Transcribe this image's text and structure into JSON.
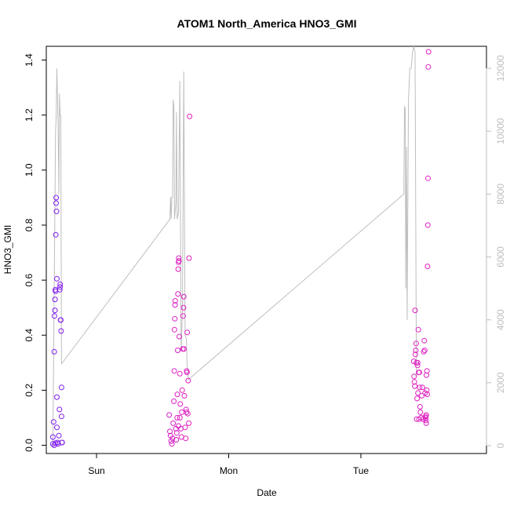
{
  "chart_data": {
    "type": "scatter",
    "title": "ATOM1 North_America HNO3_GMI",
    "xlabel": "Date",
    "ylabel": "HNO3_GMI",
    "x_ticks": [
      "Sun",
      "Mon",
      "Tue"
    ],
    "xlim_days": [
      -0.38,
      2.95
    ],
    "ylim": [
      -0.03,
      1.45
    ],
    "y_ticks": [
      0.0,
      0.2,
      0.4,
      0.6,
      0.8,
      1.0,
      1.2,
      1.4
    ],
    "y2_ticks": [
      0,
      2000,
      4000,
      6000,
      8000,
      10000,
      12000
    ],
    "y2lim": [
      -250,
      12700
    ],
    "colors": {
      "axis": "#000000",
      "secondary": "#bebebe",
      "point_early": "#7a1af0",
      "point_late": "#e020c0"
    },
    "grid": false,
    "legend": "none",
    "series": [
      {
        "marker": "circle-open",
        "points": [
          {
            "day": -0.33,
            "value": 0.005
          },
          {
            "day": -0.33,
            "value": 0.03
          },
          {
            "day": -0.325,
            "value": 0.085
          },
          {
            "day": -0.32,
            "value": 0.34
          },
          {
            "day": -0.318,
            "value": 0.47
          },
          {
            "day": -0.315,
            "value": 0.49
          },
          {
            "day": -0.314,
            "value": 0.53
          },
          {
            "day": -0.312,
            "value": 0.565
          },
          {
            "day": -0.31,
            "value": 0.56
          },
          {
            "day": -0.308,
            "value": 0.765
          },
          {
            "day": -0.306,
            "value": 0.88
          },
          {
            "day": -0.305,
            "value": 0.9
          },
          {
            "day": -0.303,
            "value": 0.85
          },
          {
            "day": -0.3,
            "value": 0.605
          },
          {
            "day": -0.3,
            "value": 0.175
          },
          {
            "day": -0.3,
            "value": 0.065
          },
          {
            "day": -0.295,
            "value": 0.01
          },
          {
            "day": -0.29,
            "value": 0.005
          },
          {
            "day": -0.285,
            "value": 0.035
          },
          {
            "day": -0.28,
            "value": 0.13
          },
          {
            "day": -0.278,
            "value": 0.565
          },
          {
            "day": -0.276,
            "value": 0.575
          },
          {
            "day": -0.275,
            "value": 0.585
          },
          {
            "day": -0.272,
            "value": 0.455
          },
          {
            "day": -0.27,
            "value": 0.455
          },
          {
            "day": -0.268,
            "value": 0.415
          },
          {
            "day": -0.265,
            "value": 0.21
          },
          {
            "day": -0.265,
            "value": 0.105
          },
          {
            "day": -0.262,
            "value": 0.01
          },
          {
            "day": -0.26,
            "value": 0.01
          },
          {
            "day": -0.32,
            "value": 0.0
          },
          {
            "day": -0.31,
            "value": 0.008
          },
          {
            "day": 0.55,
            "value": 0.11
          },
          {
            "day": 0.555,
            "value": 0.05
          },
          {
            "day": 0.56,
            "value": 0.035
          },
          {
            "day": 0.565,
            "value": 0.015
          },
          {
            "day": 0.57,
            "value": 0.005
          },
          {
            "day": 0.575,
            "value": 0.025
          },
          {
            "day": 0.58,
            "value": 0.08
          },
          {
            "day": 0.585,
            "value": 0.16
          },
          {
            "day": 0.588,
            "value": 0.27
          },
          {
            "day": 0.59,
            "value": 0.42
          },
          {
            "day": 0.592,
            "value": 0.46
          },
          {
            "day": 0.594,
            "value": 0.51
          },
          {
            "day": 0.596,
            "value": 0.525
          },
          {
            "day": 0.6,
            "value": 0.06
          },
          {
            "day": 0.603,
            "value": 0.02
          },
          {
            "day": 0.607,
            "value": 0.045
          },
          {
            "day": 0.61,
            "value": 0.1
          },
          {
            "day": 0.612,
            "value": 0.185
          },
          {
            "day": 0.614,
            "value": 0.345
          },
          {
            "day": 0.616,
            "value": 0.55
          },
          {
            "day": 0.618,
            "value": 0.64
          },
          {
            "day": 0.62,
            "value": 0.665
          },
          {
            "day": 0.622,
            "value": 0.68
          },
          {
            "day": 0.624,
            "value": 0.67
          },
          {
            "day": 0.626,
            "value": 0.395
          },
          {
            "day": 0.63,
            "value": 0.26
          },
          {
            "day": 0.634,
            "value": 0.15
          },
          {
            "day": 0.638,
            "value": 0.06
          },
          {
            "day": 0.642,
            "value": 0.03
          },
          {
            "day": 0.645,
            "value": 0.12
          },
          {
            "day": 0.648,
            "value": 0.2
          },
          {
            "day": 0.652,
            "value": 0.35
          },
          {
            "day": 0.655,
            "value": 0.47
          },
          {
            "day": 0.658,
            "value": 0.5
          },
          {
            "day": 0.66,
            "value": 0.54
          },
          {
            "day": 0.662,
            "value": 0.35
          },
          {
            "day": 0.665,
            "value": 0.18
          },
          {
            "day": 0.67,
            "value": 0.065
          },
          {
            "day": 0.675,
            "value": 0.025
          },
          {
            "day": 0.678,
            "value": 0.13
          },
          {
            "day": 0.68,
            "value": 0.12
          },
          {
            "day": 0.682,
            "value": 0.27
          },
          {
            "day": 0.684,
            "value": 0.265
          },
          {
            "day": 0.686,
            "value": 0.41
          },
          {
            "day": 0.69,
            "value": 0.115
          },
          {
            "day": 0.694,
            "value": 0.235
          },
          {
            "day": 0.698,
            "value": 0.08
          },
          {
            "day": 0.7,
            "value": 0.68
          },
          {
            "day": 0.704,
            "value": 1.195
          },
          {
            "day": 0.62,
            "value": 0.07
          },
          {
            "day": 0.63,
            "value": 0.1
          },
          {
            "day": 2.4,
            "value": 0.305
          },
          {
            "day": 2.402,
            "value": 0.25
          },
          {
            "day": 2.405,
            "value": 0.23
          },
          {
            "day": 2.408,
            "value": 0.215
          },
          {
            "day": 2.41,
            "value": 0.49
          },
          {
            "day": 2.412,
            "value": 0.33
          },
          {
            "day": 2.415,
            "value": 0.345
          },
          {
            "day": 2.418,
            "value": 0.37
          },
          {
            "day": 2.42,
            "value": 0.3
          },
          {
            "day": 2.422,
            "value": 0.095
          },
          {
            "day": 2.425,
            "value": 0.17
          },
          {
            "day": 2.428,
            "value": 0.29
          },
          {
            "day": 2.43,
            "value": 0.3
          },
          {
            "day": 2.432,
            "value": 0.19
          },
          {
            "day": 2.435,
            "value": 0.42
          },
          {
            "day": 2.438,
            "value": 0.265
          },
          {
            "day": 2.44,
            "value": 0.095
          },
          {
            "day": 2.442,
            "value": 0.265
          },
          {
            "day": 2.445,
            "value": 0.21
          },
          {
            "day": 2.448,
            "value": 0.14
          },
          {
            "day": 2.45,
            "value": 0.12
          },
          {
            "day": 2.455,
            "value": 0.1
          },
          {
            "day": 2.46,
            "value": 0.18
          },
          {
            "day": 2.465,
            "value": 0.21
          },
          {
            "day": 2.47,
            "value": 0.095
          },
          {
            "day": 2.475,
            "value": 0.34
          },
          {
            "day": 2.48,
            "value": 0.38
          },
          {
            "day": 2.483,
            "value": 0.345
          },
          {
            "day": 2.486,
            "value": 0.19
          },
          {
            "day": 2.49,
            "value": 0.1
          },
          {
            "day": 2.492,
            "value": 0.09
          },
          {
            "day": 2.494,
            "value": 0.08
          },
          {
            "day": 2.496,
            "value": 0.255
          },
          {
            "day": 2.498,
            "value": 0.2
          },
          {
            "day": 2.5,
            "value": 0.27
          },
          {
            "day": 2.502,
            "value": 0.185
          },
          {
            "day": 2.504,
            "value": 0.65
          },
          {
            "day": 2.506,
            "value": 0.8
          },
          {
            "day": 2.508,
            "value": 0.97
          },
          {
            "day": 2.51,
            "value": 1.375
          },
          {
            "day": 2.512,
            "value": 1.43
          },
          {
            "day": 2.49,
            "value": 0.105
          },
          {
            "day": 2.495,
            "value": 0.11
          }
        ]
      },
      {
        "name_axis": "right",
        "line": [
          {
            "day": -0.33,
            "value": 0
          },
          {
            "day": -0.31,
            "value": 10000
          },
          {
            "day": -0.305,
            "value": 10500
          },
          {
            "day": -0.3,
            "value": 12000
          },
          {
            "day": -0.29,
            "value": 10000
          },
          {
            "day": -0.285,
            "value": 8000
          },
          {
            "day": -0.28,
            "value": 11200
          },
          {
            "day": -0.275,
            "value": 10500
          },
          {
            "day": -0.27,
            "value": 10500
          },
          {
            "day": -0.265,
            "value": 2600
          },
          {
            "day": 0.555,
            "value": 7200
          },
          {
            "day": 0.56,
            "value": 7900
          },
          {
            "day": 0.565,
            "value": 7200
          },
          {
            "day": 0.57,
            "value": 7900
          },
          {
            "day": 0.575,
            "value": 7900
          },
          {
            "day": 0.58,
            "value": 11000
          },
          {
            "day": 0.585,
            "value": 10800
          },
          {
            "day": 0.59,
            "value": 7200
          },
          {
            "day": 0.6,
            "value": 7700
          },
          {
            "day": 0.605,
            "value": 10600
          },
          {
            "day": 0.61,
            "value": 7200
          },
          {
            "day": 0.62,
            "value": 7400
          },
          {
            "day": 0.63,
            "value": 11600
          },
          {
            "day": 0.64,
            "value": 3000
          },
          {
            "day": 0.65,
            "value": 4200
          },
          {
            "day": 0.66,
            "value": 11900
          },
          {
            "day": 0.67,
            "value": 3500
          },
          {
            "day": 0.68,
            "value": 3400
          },
          {
            "day": 0.685,
            "value": 2600
          },
          {
            "day": 0.695,
            "value": 2100
          },
          {
            "day": 2.325,
            "value": 8000
          },
          {
            "day": 2.33,
            "value": 10800
          },
          {
            "day": 2.335,
            "value": 10700
          },
          {
            "day": 2.34,
            "value": 5000
          },
          {
            "day": 2.345,
            "value": 9500
          },
          {
            "day": 2.35,
            "value": 4000
          },
          {
            "day": 2.36,
            "value": 11000
          },
          {
            "day": 2.37,
            "value": 12000
          },
          {
            "day": 2.38,
            "value": 12000
          },
          {
            "day": 2.39,
            "value": 12500
          },
          {
            "day": 2.4,
            "value": 12700
          },
          {
            "day": 2.41,
            "value": 12500
          },
          {
            "day": 2.42,
            "value": 2200
          }
        ]
      }
    ]
  }
}
